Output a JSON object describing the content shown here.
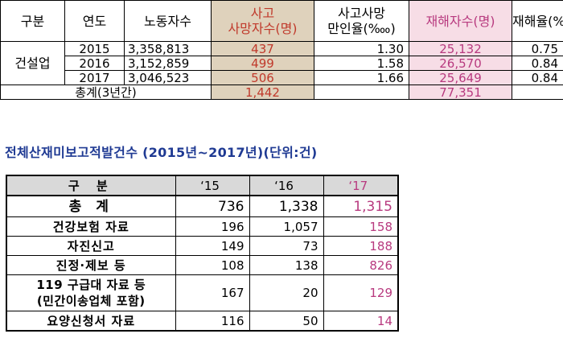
{
  "table1": {
    "headers": {
      "category": "구분",
      "year": "연도",
      "workers": "노동자수",
      "deaths": "사고\n사망자수(명)",
      "death_rate": "사고사망\n만인율(‱)",
      "injured": "재해자수(명)",
      "injury_rate": "재해율(%)"
    },
    "group_label": "건설업",
    "rows": [
      {
        "year": "2015",
        "workers": "3,358,813",
        "deaths": "437",
        "death_rate": "1.30",
        "injured": "25,132",
        "injury_rate": "0.75"
      },
      {
        "year": "2016",
        "workers": "3,152,859",
        "deaths": "499",
        "death_rate": "1.58",
        "injured": "26,570",
        "injury_rate": "0.84"
      },
      {
        "year": "2017",
        "workers": "3,046,523",
        "deaths": "506",
        "death_rate": "1.66",
        "injured": "25,649",
        "injury_rate": "0.84"
      }
    ],
    "total": {
      "label": "총계(3년간)",
      "deaths": "1,442",
      "injured": "77,351"
    }
  },
  "title2": "전체산재미보고적발건수 (2015년~2017년)(단위:건)",
  "table2": {
    "headers": {
      "category": "구 분",
      "y15": "‘15",
      "y16": "‘16",
      "y17": "‘17"
    },
    "total": {
      "label": "총 계",
      "y15": "736",
      "y16": "1,338",
      "y17": "1,315"
    },
    "rows": [
      {
        "label": "건강보험 자료",
        "y15": "196",
        "y16": "1,057",
        "y17": "158"
      },
      {
        "label": "자진신고",
        "y15": "149",
        "y16": "73",
        "y17": "188"
      },
      {
        "label": "진정·제보 등",
        "y15": "108",
        "y16": "138",
        "y17": "826"
      },
      {
        "label": "119 구급대 자료 등\n(민간이송업체 포함)",
        "y15": "167",
        "y16": "20",
        "y17": "129"
      },
      {
        "label": "요양신청서 자료",
        "y15": "116",
        "y16": "50",
        "y17": "14"
      }
    ]
  },
  "colors": {
    "header_tan": "#dfd2bc",
    "header_pink": "#f7dde6",
    "red": "#c0392b",
    "magenta": "#b83a7f",
    "title_blue": "#1f3a93",
    "header_gray": "#d9d9d9"
  }
}
